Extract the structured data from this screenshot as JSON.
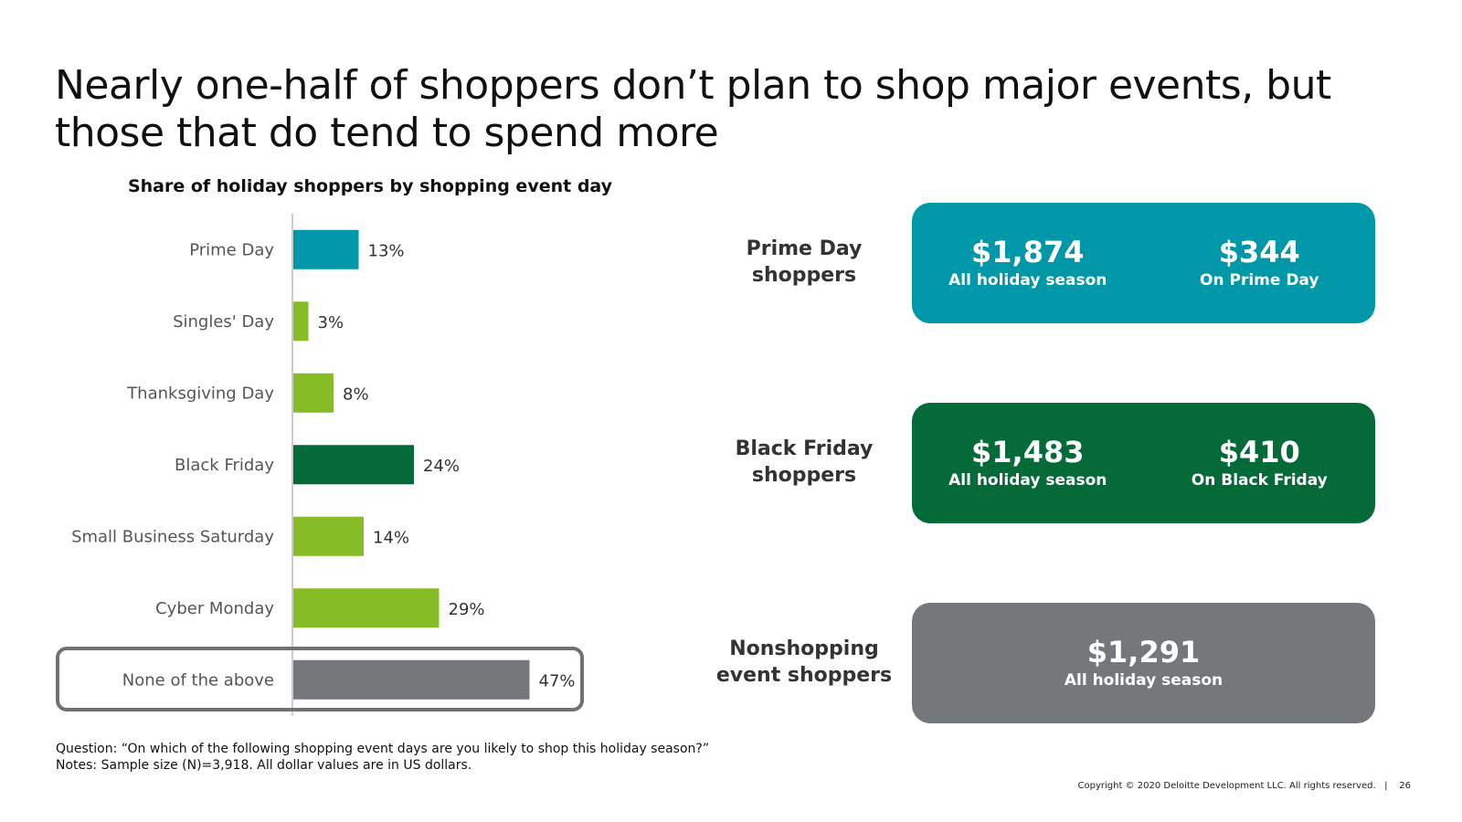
{
  "title": "Nearly one-half of shoppers don’t plan to shop major events, but those that do tend to spend more",
  "colors": {
    "teal": "#0097a9",
    "light_green": "#86bc25",
    "dark_green": "#046a38",
    "gray": "#75787b",
    "axis": "#cccccc"
  },
  "chart_data": {
    "type": "bar",
    "orientation": "horizontal",
    "title": "Share of holiday shoppers by shopping event day",
    "categories": [
      "Prime Day",
      "Singles' Day",
      "Thanksgiving Day",
      "Black Friday",
      "Small Business Saturday",
      "Cyber Monday",
      "None of the above"
    ],
    "values": [
      13,
      3,
      8,
      24,
      14,
      29,
      47
    ],
    "value_labels": [
      "13%",
      "3%",
      "8%",
      "24%",
      "14%",
      "29%",
      "47%"
    ],
    "bar_colors": [
      "#0097a9",
      "#86bc25",
      "#86bc25",
      "#046a38",
      "#86bc25",
      "#86bc25",
      "#75787b"
    ],
    "unit": "%",
    "xlim": [
      0,
      100
    ],
    "grid": false,
    "highlighted_category": "None of the above"
  },
  "spend_groups": [
    {
      "label_lines": [
        "Prime Day",
        "shoppers"
      ],
      "color": "#0097a9",
      "items": [
        {
          "amount": "$1,874",
          "label": "All holiday season"
        },
        {
          "amount": "$344",
          "label": "On Prime Day"
        }
      ]
    },
    {
      "label_lines": [
        "Black Friday",
        "shoppers"
      ],
      "color": "#046a38",
      "items": [
        {
          "amount": "$1,483",
          "label": "All holiday season"
        },
        {
          "amount": "$410",
          "label": "On Black Friday"
        }
      ]
    },
    {
      "label_lines": [
        "Nonshopping",
        "event shoppers"
      ],
      "color": "#75787b",
      "items": [
        {
          "amount": "$1,291",
          "label": "All holiday season"
        }
      ]
    }
  ],
  "footnotes": {
    "question": "Question: “On which of the following shopping event days are you likely to shop this holiday season?”",
    "notes": "Notes: Sample size (N)=3,918. All dollar values are in US dollars."
  },
  "copyright": "Copyright © 2020 Deloitte Development LLC. All rights reserved.",
  "page_number": "26"
}
